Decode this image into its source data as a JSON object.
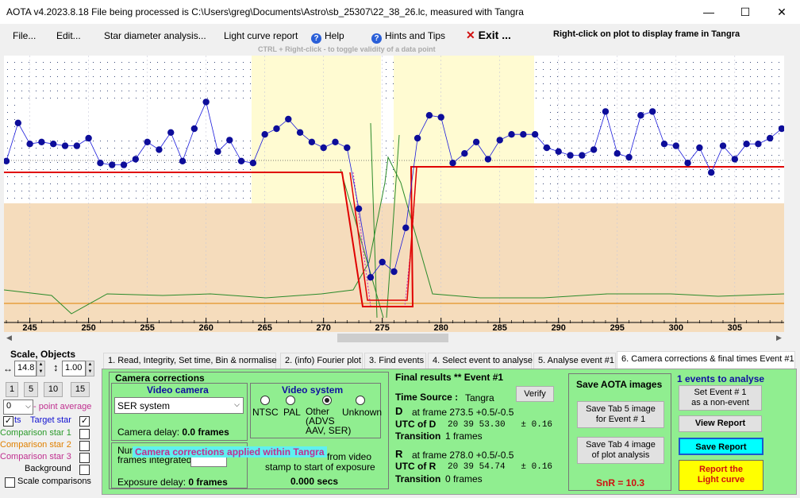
{
  "title": "AOTA v4.2023.8.18    File being processed is C:\\Users\\greg\\Documents\\Astro\\sb_25307\\22_38_26.lc, measured with Tangra",
  "window_controls": {
    "minimize": "—",
    "maximize": "☐",
    "close": "✕"
  },
  "menu": {
    "file": "File...",
    "edit": "Edit...",
    "star_diameter": "Star diameter analysis...",
    "light_curve_report": "Light curve report",
    "help": "Help",
    "hints": "Hints and Tips",
    "exit": "Exit ...",
    "right_click_hint": "Right-click on plot to display frame in Tangra",
    "ctrl_hint": "CTRL + Right-click   -  to toggle validity of a data point"
  },
  "chart_data": {
    "type": "line",
    "x_ticks": [
      "245",
      "250",
      "255",
      "260",
      "265",
      "270",
      "275",
      "280",
      "285",
      "290",
      "295",
      "300",
      "305"
    ],
    "xlim": [
      243,
      309
    ],
    "series": [
      {
        "x": [
          243,
          244,
          245,
          246,
          247,
          248,
          249,
          250,
          251,
          252,
          253,
          254,
          255,
          256,
          257,
          258,
          259,
          260,
          261,
          262,
          263,
          264,
          265,
          266,
          267,
          268,
          269,
          270,
          271,
          272,
          273,
          274,
          275,
          276,
          277,
          278,
          279,
          280,
          281,
          282,
          283,
          284,
          285,
          286,
          287,
          288,
          289,
          290,
          291,
          292,
          293,
          294,
          295,
          296,
          297,
          298,
          299,
          300,
          301,
          302,
          303,
          304,
          305,
          306,
          307,
          308,
          309
        ],
        "y": [
          0.53,
          0.73,
          0.62,
          0.63,
          0.62,
          0.61,
          0.61,
          0.65,
          0.52,
          0.51,
          0.51,
          0.54,
          0.63,
          0.59,
          0.68,
          0.53,
          0.7,
          0.84,
          0.58,
          0.64,
          0.53,
          0.52,
          0.67,
          0.7,
          0.75,
          0.68,
          0.63,
          0.6,
          0.63,
          0.6,
          0.28,
          -0.08,
          0.0,
          -0.05,
          0.18,
          0.65,
          0.77,
          0.76,
          0.52,
          0.57,
          0.63,
          0.54,
          0.64,
          0.67,
          0.67,
          0.67,
          0.6,
          0.58,
          0.56,
          0.56,
          0.59,
          0.79,
          0.57,
          0.55,
          0.77,
          0.79,
          0.62,
          0.61,
          0.52,
          0.6,
          0.47,
          0.61,
          0.54,
          0.62,
          0.62,
          0.65,
          0.7
        ]
      }
    ]
  },
  "left": {
    "scale_objects": "Scale,  Objects",
    "scale_value": "14.8",
    "objects_value": "1.00",
    "step_buttons": [
      "1",
      "5",
      "10",
      "15"
    ],
    "point_avg_value": "0",
    "point_avg_label": "- point average",
    "target_label": "Target star",
    "target_prefix": "ts",
    "comp1": "Comparison star 1",
    "comp2": "Comparison star 2",
    "comp3": "Comparison star 3",
    "background": "Background",
    "scale_comparisons": "Scale comparisons",
    "colors": {
      "target": "#1010d0",
      "comp1": "#2a9a2a",
      "comp2": "#e08000",
      "comp3": "#c03090",
      "point_avg": "#c03090"
    }
  },
  "tabs": [
    "1.  Read, Integrity, Set time, Bin & normalise",
    "2. (info)  Fourier plot",
    "3. Find events",
    "4. Select event to analyse",
    "5. Analyse event #1",
    "6. Camera corrections & final times Event #1"
  ],
  "camera": {
    "heading": "Camera corrections",
    "video_camera": "Video camera",
    "camera_select": "SER system",
    "camera_delay_label": "Camera delay:",
    "camera_delay_value": "0.0 frames",
    "video_system": "Video system",
    "radios": [
      "NTSC",
      "PAL",
      "Other\n(ADVS\nAAV, SER)",
      "Unknown"
    ],
    "num_frames_label": "Num\nframes integrated",
    "overlay": "Camera corrections applied within Tangra",
    "from_video": "from video",
    "stamp_text": "stamp to start of exposure",
    "exposure_delay_label": "Exposure delay:",
    "exposure_delay_value": "0 frames",
    "secs": "0.000 secs"
  },
  "final": {
    "heading": "Final results  **  Event #1",
    "verify": "Verify",
    "time_source_label": "Time Source :",
    "time_source_value": "Tangra",
    "d_label": "D",
    "d_frame": "at frame 273.5  +0.5/-0.5",
    "utc_d_label": "UTC of D",
    "utc_d_value": "20 39 53.30   ± 0.16",
    "transition_label": "Transition",
    "transition_d": "1 frames",
    "r_label": "R",
    "r_frame": "at frame 278.0  +0.5/-0.5",
    "utc_r_label": "UTC of R",
    "utc_r_value": "20 39 54.74   ± 0.16",
    "transition_r": "0 frames"
  },
  "save": {
    "heading": "Save AOTA images",
    "tab5": "Save Tab 5 image\nfor Event # 1",
    "tab4": "Save Tab 4 image\nof plot analysis",
    "snr": "SnR = 10.3"
  },
  "events": {
    "heading": "1  events to analyse",
    "set_non_event": "Set Event # 1\nas a non-event",
    "view_report": "View Report",
    "save_report": "Save Report",
    "report_light_curve": "Report the\nLight curve"
  }
}
